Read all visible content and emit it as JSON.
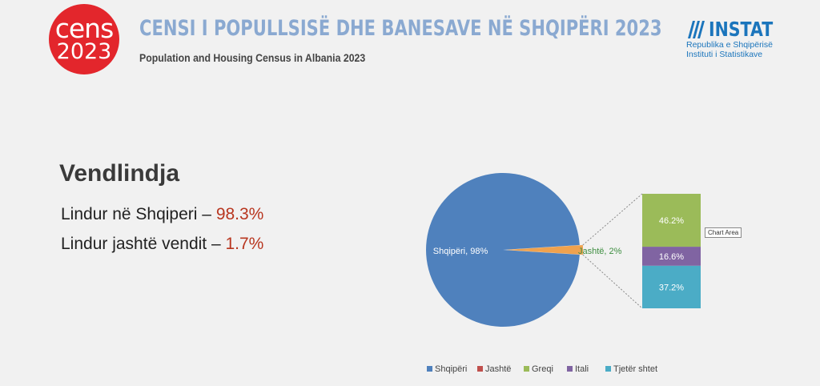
{
  "header": {
    "logo_line1": "cens",
    "logo_line2": "2023",
    "title": "CENSI I POPULLSISË DHE BANESAVE NË SHQIPËRI 2023",
    "subtitle": "Population and Housing Census in Albania 2023",
    "org_name": "INSTAT",
    "org_line1": "Republika e Shqipërisë",
    "org_line2": "Instituti i Statistikave"
  },
  "content": {
    "heading": "Vendlindja",
    "line1_label": "Lindur në Shqiperi – ",
    "line1_value": "98.3%",
    "line2_label": "Lindur jashtë vendit – ",
    "line2_value": "1.7%"
  },
  "tooltip": "Chart Area",
  "colors": {
    "logo_red": "#e3262c",
    "title_blue": "#8aa9d1",
    "highlight_red": "#b8361f",
    "shqiperi": "#4f81bd",
    "jashte": "#c0504d",
    "greqi": "#9bbb59",
    "itali": "#8064a2",
    "tjeter": "#4bacc6",
    "slice_orange": "#f0a24e"
  },
  "chart_data": {
    "type": "pie",
    "subtype": "pie-of-pie (bar of pie)",
    "pie": [
      {
        "name": "Shqipëri",
        "value": 98,
        "label": "Shqipëri, 98%"
      },
      {
        "name": "Jashtë",
        "value": 2,
        "label": "Jashtë, 2%"
      }
    ],
    "breakdown_of": "Jashtë",
    "bar": [
      {
        "name": "Tjetër shtet",
        "value": 37.2,
        "label": "37.2%"
      },
      {
        "name": "Itali",
        "value": 16.6,
        "label": "16.6%"
      },
      {
        "name": "Greqi",
        "value": 46.2,
        "label": "46.2%"
      }
    ],
    "legend": [
      "Shqipëri",
      "Jashtë",
      "Greqi",
      "Itali",
      "Tjetër shtet"
    ],
    "legend_position": "bottom"
  }
}
